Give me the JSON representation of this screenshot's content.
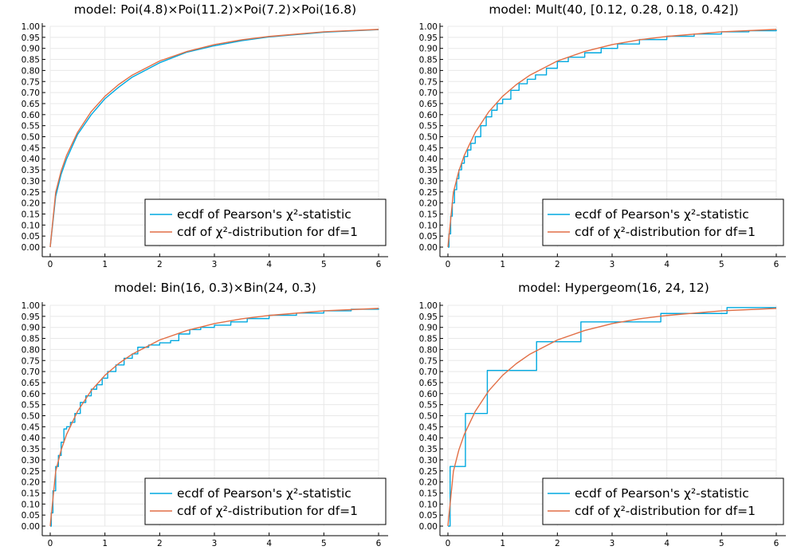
{
  "colors": {
    "ecdf": "#00a9e0",
    "cdf": "#e26f46",
    "grid": "#e8e8e8",
    "axis": "#000000"
  },
  "chart_data": [
    {
      "type": "line",
      "title": "model: Poi(4.8)×Poi(11.2)×Poi(7.2)×Poi(16.8)",
      "xlim": [
        0,
        6
      ],
      "ylim": [
        0,
        1
      ],
      "xticks": [
        "0",
        "1",
        "2",
        "3",
        "4",
        "5",
        "6"
      ],
      "yticks": [
        "0.00",
        "0.05",
        "0.10",
        "0.15",
        "0.20",
        "0.25",
        "0.30",
        "0.35",
        "0.40",
        "0.45",
        "0.50",
        "0.55",
        "0.60",
        "0.65",
        "0.70",
        "0.75",
        "0.80",
        "0.85",
        "0.90",
        "0.95",
        "1.00"
      ],
      "grid": true,
      "legend_position": "bottom-right",
      "series": [
        {
          "name": "ecdf of Pearson's χ²-statistic",
          "style": "line",
          "x": [
            0,
            0.1,
            0.2,
            0.3,
            0.5,
            0.75,
            1.0,
            1.25,
            1.5,
            2.0,
            2.5,
            3.0,
            3.5,
            4.0,
            5.0,
            6.0
          ],
          "y": [
            0,
            0.23,
            0.33,
            0.4,
            0.51,
            0.6,
            0.672,
            0.724,
            0.77,
            0.835,
            0.883,
            0.912,
            0.935,
            0.952,
            0.973,
            0.985
          ]
        },
        {
          "name": "cdf of χ²-distribution for df=1",
          "style": "line",
          "x": [
            0,
            0.1,
            0.2,
            0.3,
            0.5,
            0.75,
            1.0,
            1.25,
            1.5,
            2.0,
            2.5,
            3.0,
            3.5,
            4.0,
            5.0,
            6.0
          ],
          "y": [
            0,
            0.248,
            0.345,
            0.416,
            0.52,
            0.614,
            0.683,
            0.736,
            0.779,
            0.843,
            0.886,
            0.917,
            0.939,
            0.954,
            0.975,
            0.986
          ]
        }
      ]
    },
    {
      "type": "line",
      "title": "model: Mult(40, [0.12, 0.28, 0.18, 0.42])",
      "xlim": [
        0,
        6
      ],
      "ylim": [
        0,
        1
      ],
      "xticks": [
        "0",
        "1",
        "2",
        "3",
        "4",
        "5",
        "6"
      ],
      "yticks": [
        "0.00",
        "0.05",
        "0.10",
        "0.15",
        "0.20",
        "0.25",
        "0.30",
        "0.35",
        "0.40",
        "0.45",
        "0.50",
        "0.55",
        "0.60",
        "0.65",
        "0.70",
        "0.75",
        "0.80",
        "0.85",
        "0.90",
        "0.95",
        "1.00"
      ],
      "grid": true,
      "legend_position": "bottom-right",
      "series": [
        {
          "name": "ecdf of Pearson's χ²-statistic",
          "style": "step",
          "x": [
            0,
            0.02,
            0.05,
            0.08,
            0.12,
            0.16,
            0.2,
            0.25,
            0.3,
            0.36,
            0.42,
            0.5,
            0.6,
            0.7,
            0.8,
            0.9,
            1.0,
            1.15,
            1.3,
            1.45,
            1.6,
            1.8,
            2.0,
            2.2,
            2.5,
            2.8,
            3.1,
            3.5,
            4.0,
            4.5,
            5.0,
            5.5,
            6.0
          ],
          "y": [
            0,
            0.06,
            0.14,
            0.2,
            0.26,
            0.31,
            0.35,
            0.38,
            0.41,
            0.44,
            0.47,
            0.5,
            0.55,
            0.59,
            0.62,
            0.65,
            0.67,
            0.71,
            0.74,
            0.76,
            0.78,
            0.81,
            0.84,
            0.86,
            0.88,
            0.9,
            0.92,
            0.94,
            0.955,
            0.965,
            0.975,
            0.98,
            0.985
          ]
        },
        {
          "name": "cdf of χ²-distribution for df=1",
          "style": "line",
          "x": [
            0,
            0.1,
            0.2,
            0.3,
            0.5,
            0.75,
            1.0,
            1.25,
            1.5,
            2.0,
            2.5,
            3.0,
            3.5,
            4.0,
            5.0,
            6.0
          ],
          "y": [
            0,
            0.248,
            0.345,
            0.416,
            0.52,
            0.614,
            0.683,
            0.736,
            0.779,
            0.843,
            0.886,
            0.917,
            0.939,
            0.954,
            0.975,
            0.986
          ]
        }
      ]
    },
    {
      "type": "line",
      "title": "model: Bin(16, 0.3)×Bin(24, 0.3)",
      "xlim": [
        0,
        6
      ],
      "ylim": [
        0,
        1
      ],
      "xticks": [
        "0",
        "1",
        "2",
        "3",
        "4",
        "5",
        "6"
      ],
      "yticks": [
        "0.00",
        "0.05",
        "0.10",
        "0.15",
        "0.20",
        "0.25",
        "0.30",
        "0.35",
        "0.40",
        "0.45",
        "0.50",
        "0.55",
        "0.60",
        "0.65",
        "0.70",
        "0.75",
        "0.80",
        "0.85",
        "0.90",
        "0.95",
        "1.00"
      ],
      "grid": true,
      "legend_position": "bottom-right",
      "series": [
        {
          "name": "ecdf of Pearson's χ²-statistic",
          "style": "step",
          "x": [
            0,
            0.02,
            0.05,
            0.1,
            0.15,
            0.2,
            0.25,
            0.3,
            0.37,
            0.45,
            0.55,
            0.65,
            0.75,
            0.85,
            0.95,
            1.05,
            1.2,
            1.35,
            1.5,
            1.6,
            1.8,
            2.0,
            2.2,
            2.35,
            2.55,
            2.75,
            3.0,
            3.3,
            3.6,
            4.0,
            4.5,
            5.0,
            5.5,
            6.0
          ],
          "y": [
            0,
            0.06,
            0.16,
            0.27,
            0.32,
            0.38,
            0.44,
            0.45,
            0.47,
            0.51,
            0.56,
            0.59,
            0.62,
            0.64,
            0.67,
            0.7,
            0.73,
            0.76,
            0.78,
            0.81,
            0.82,
            0.83,
            0.84,
            0.87,
            0.89,
            0.9,
            0.91,
            0.925,
            0.94,
            0.955,
            0.965,
            0.975,
            0.982,
            0.986
          ]
        },
        {
          "name": "cdf of χ²-distribution for df=1",
          "style": "line",
          "x": [
            0,
            0.1,
            0.2,
            0.3,
            0.5,
            0.75,
            1.0,
            1.25,
            1.5,
            2.0,
            2.5,
            3.0,
            3.5,
            4.0,
            5.0,
            6.0
          ],
          "y": [
            0,
            0.248,
            0.345,
            0.416,
            0.52,
            0.614,
            0.683,
            0.736,
            0.779,
            0.843,
            0.886,
            0.917,
            0.939,
            0.954,
            0.975,
            0.986
          ]
        }
      ]
    },
    {
      "type": "line",
      "title": "model: Hypergeom(16, 24, 12)",
      "xlim": [
        0,
        6
      ],
      "ylim": [
        0,
        1
      ],
      "xticks": [
        "0",
        "1",
        "2",
        "3",
        "4",
        "5",
        "6"
      ],
      "yticks": [
        "0.00",
        "0.05",
        "0.10",
        "0.15",
        "0.20",
        "0.25",
        "0.30",
        "0.35",
        "0.40",
        "0.45",
        "0.50",
        "0.55",
        "0.60",
        "0.65",
        "0.70",
        "0.75",
        "0.80",
        "0.85",
        "0.90",
        "0.95",
        "1.00"
      ],
      "grid": true,
      "legend_position": "bottom-right",
      "series": [
        {
          "name": "ecdf of Pearson's χ²-statistic",
          "style": "step",
          "x": [
            0,
            0.04,
            0.32,
            0.72,
            1.62,
            2.43,
            3.89,
            5.1,
            6.0
          ],
          "y": [
            0,
            0.27,
            0.51,
            0.705,
            0.835,
            0.925,
            0.963,
            0.99,
            0.99
          ]
        },
        {
          "name": "cdf of χ²-distribution for df=1",
          "style": "line",
          "x": [
            0,
            0.1,
            0.2,
            0.3,
            0.5,
            0.75,
            1.0,
            1.25,
            1.5,
            2.0,
            2.5,
            3.0,
            3.5,
            4.0,
            5.0,
            6.0
          ],
          "y": [
            0,
            0.248,
            0.345,
            0.416,
            0.52,
            0.614,
            0.683,
            0.736,
            0.779,
            0.843,
            0.886,
            0.917,
            0.939,
            0.954,
            0.975,
            0.986
          ]
        }
      ]
    }
  ]
}
